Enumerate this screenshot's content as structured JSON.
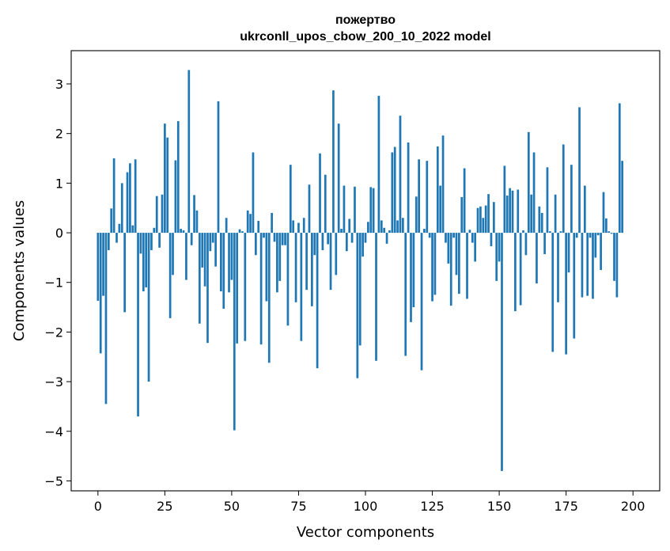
{
  "chart_data": {
    "type": "bar",
    "title_line1": "пожертво",
    "title_line2": "ukrconll_upos_cbow_200_10_2022 model",
    "xlabel": "Vector components",
    "ylabel": "Components values",
    "xlim": [
      -10,
      210
    ],
    "ylim": [
      -5.2,
      3.67
    ],
    "xticks": [
      0,
      25,
      50,
      75,
      100,
      125,
      150,
      175,
      200
    ],
    "yticks": [
      -5,
      -4,
      -3,
      -2,
      -1,
      0,
      1,
      2,
      3
    ],
    "ytick_labels": [
      "−5",
      "−4",
      "−3",
      "−2",
      "−1",
      "0",
      "1",
      "2",
      "3"
    ],
    "color": "#1f77b4",
    "values": [
      -1.37,
      -2.43,
      -1.27,
      -3.45,
      -0.35,
      0.49,
      1.5,
      -0.2,
      0.18,
      1.0,
      -1.6,
      1.22,
      1.4,
      0.15,
      1.48,
      -3.7,
      -0.42,
      -1.18,
      -1.1,
      -3.0,
      -0.35,
      0.1,
      0.74,
      -0.3,
      0.77,
      2.2,
      1.92,
      -1.72,
      -0.85,
      1.46,
      2.25,
      0.08,
      0.05,
      -0.95,
      3.28,
      -0.25,
      0.76,
      0.45,
      -1.83,
      -0.7,
      -1.08,
      -2.22,
      -0.37,
      -0.2,
      -0.68,
      2.65,
      -1.18,
      -1.53,
      0.3,
      -1.2,
      -0.95,
      -3.98,
      -2.23,
      0.07,
      0.03,
      -2.18,
      0.45,
      0.38,
      1.62,
      -0.45,
      0.24,
      -2.25,
      -0.1,
      -1.38,
      -2.62,
      0.4,
      -0.18,
      -1.2,
      -0.97,
      -0.25,
      -0.25,
      -1.87,
      1.37,
      0.25,
      -1.4,
      0.2,
      -2.18,
      0.3,
      -1.15,
      0.97,
      -1.48,
      -0.45,
      -2.73,
      1.6,
      -0.35,
      1.17,
      -0.23,
      -1.15,
      2.87,
      -0.85,
      2.2,
      0.08,
      0.95,
      -0.37,
      0.28,
      -0.2,
      0.93,
      -2.93,
      -2.27,
      -0.48,
      -0.2,
      0.22,
      0.92,
      0.9,
      -2.58,
      2.76,
      0.25,
      0.1,
      -0.22,
      0.05,
      1.62,
      1.73,
      0.25,
      2.36,
      0.3,
      -2.48,
      1.82,
      -1.8,
      -1.5,
      0.73,
      1.48,
      -2.77,
      0.08,
      1.45,
      -0.1,
      -1.38,
      -1.25,
      1.74,
      0.95,
      1.96,
      -0.2,
      -0.62,
      -1.47,
      -0.1,
      -0.85,
      -1.23,
      0.72,
      1.3,
      -1.33,
      0.06,
      -0.2,
      -0.58,
      0.5,
      0.53,
      0.3,
      0.55,
      0.78,
      -0.27,
      0.62,
      -0.97,
      -0.58,
      -4.8,
      1.35,
      0.75,
      0.9,
      0.85,
      -1.58,
      0.87,
      -1.46,
      0.05,
      -0.45,
      2.03,
      0.77,
      1.62,
      -1.02,
      0.53,
      0.4,
      -0.43,
      1.32,
      0.03,
      -2.4,
      0.77,
      -1.4,
      0.03,
      1.78,
      -2.45,
      -0.8,
      1.37,
      -2.13,
      -0.1,
      2.53,
      -1.3,
      0.95,
      -1.27,
      -0.1,
      -1.33,
      -0.5,
      -0.05,
      -0.75,
      0.82,
      0.29,
      0.03,
      -0.02,
      -0.97,
      -1.3,
      2.61,
      1.45
    ]
  }
}
